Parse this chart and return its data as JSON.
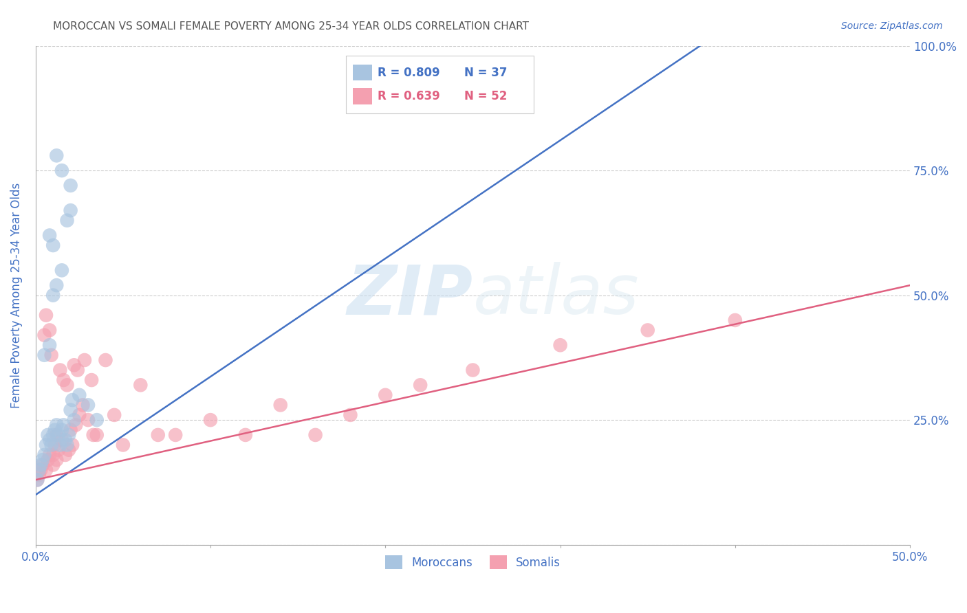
{
  "title": "MOROCCAN VS SOMALI FEMALE POVERTY AMONG 25-34 YEAR OLDS CORRELATION CHART",
  "source": "Source: ZipAtlas.com",
  "ylabel": "Female Poverty Among 25-34 Year Olds",
  "xlim": [
    0.0,
    0.5
  ],
  "ylim": [
    0.0,
    1.0
  ],
  "xticks": [
    0.0,
    0.1,
    0.2,
    0.3,
    0.4,
    0.5
  ],
  "xticklabels": [
    "0.0%",
    "",
    "",
    "",
    "",
    "50.0%"
  ],
  "yticks_right": [
    0.25,
    0.5,
    0.75,
    1.0
  ],
  "yticklabels_right": [
    "25.0%",
    "50.0%",
    "75.0%",
    "100.0%"
  ],
  "moroccan_R": 0.809,
  "moroccan_N": 37,
  "somali_R": 0.639,
  "somali_N": 52,
  "moroccan_color": "#a8c4e0",
  "somali_color": "#f4a0b0",
  "moroccan_line_color": "#4472c4",
  "somali_line_color": "#e06080",
  "background_color": "#ffffff",
  "grid_color": "#cccccc",
  "axis_label_color": "#4472c4",
  "tick_label_color": "#4472c4",
  "title_color": "#555555",
  "watermark_zip": "ZIP",
  "watermark_atlas": "atlas",
  "moroccan_scatter_x": [
    0.001,
    0.002,
    0.003,
    0.004,
    0.005,
    0.006,
    0.007,
    0.008,
    0.009,
    0.01,
    0.011,
    0.012,
    0.013,
    0.014,
    0.015,
    0.016,
    0.017,
    0.018,
    0.019,
    0.02,
    0.021,
    0.022,
    0.005,
    0.008,
    0.01,
    0.012,
    0.015,
    0.018,
    0.02,
    0.025,
    0.03,
    0.035,
    0.008,
    0.01,
    0.012,
    0.015,
    0.02
  ],
  "moroccan_scatter_y": [
    0.13,
    0.15,
    0.16,
    0.17,
    0.18,
    0.2,
    0.22,
    0.21,
    0.2,
    0.22,
    0.23,
    0.24,
    0.22,
    0.2,
    0.23,
    0.24,
    0.21,
    0.2,
    0.22,
    0.27,
    0.29,
    0.25,
    0.38,
    0.4,
    0.5,
    0.52,
    0.55,
    0.65,
    0.67,
    0.3,
    0.28,
    0.25,
    0.62,
    0.6,
    0.78,
    0.75,
    0.72
  ],
  "somali_scatter_x": [
    0.001,
    0.002,
    0.003,
    0.004,
    0.005,
    0.006,
    0.007,
    0.008,
    0.009,
    0.01,
    0.011,
    0.012,
    0.013,
    0.014,
    0.015,
    0.016,
    0.017,
    0.018,
    0.019,
    0.02,
    0.021,
    0.022,
    0.023,
    0.024,
    0.025,
    0.027,
    0.028,
    0.03,
    0.032,
    0.033,
    0.035,
    0.04,
    0.045,
    0.05,
    0.06,
    0.07,
    0.08,
    0.1,
    0.12,
    0.14,
    0.16,
    0.18,
    0.2,
    0.22,
    0.25,
    0.3,
    0.35,
    0.4,
    0.006,
    0.008,
    0.01,
    0.012
  ],
  "somali_scatter_y": [
    0.13,
    0.14,
    0.15,
    0.16,
    0.42,
    0.15,
    0.17,
    0.18,
    0.38,
    0.18,
    0.2,
    0.22,
    0.19,
    0.35,
    0.21,
    0.33,
    0.18,
    0.32,
    0.19,
    0.23,
    0.2,
    0.36,
    0.24,
    0.35,
    0.26,
    0.28,
    0.37,
    0.25,
    0.33,
    0.22,
    0.22,
    0.37,
    0.26,
    0.2,
    0.32,
    0.22,
    0.22,
    0.25,
    0.22,
    0.28,
    0.22,
    0.26,
    0.3,
    0.32,
    0.35,
    0.4,
    0.43,
    0.45,
    0.46,
    0.43,
    0.16,
    0.17
  ],
  "moroccan_line_x": [
    0.0,
    0.38
  ],
  "moroccan_line_y": [
    0.1,
    1.0
  ],
  "somali_line_x": [
    0.0,
    0.5
  ],
  "somali_line_y": [
    0.13,
    0.52
  ]
}
